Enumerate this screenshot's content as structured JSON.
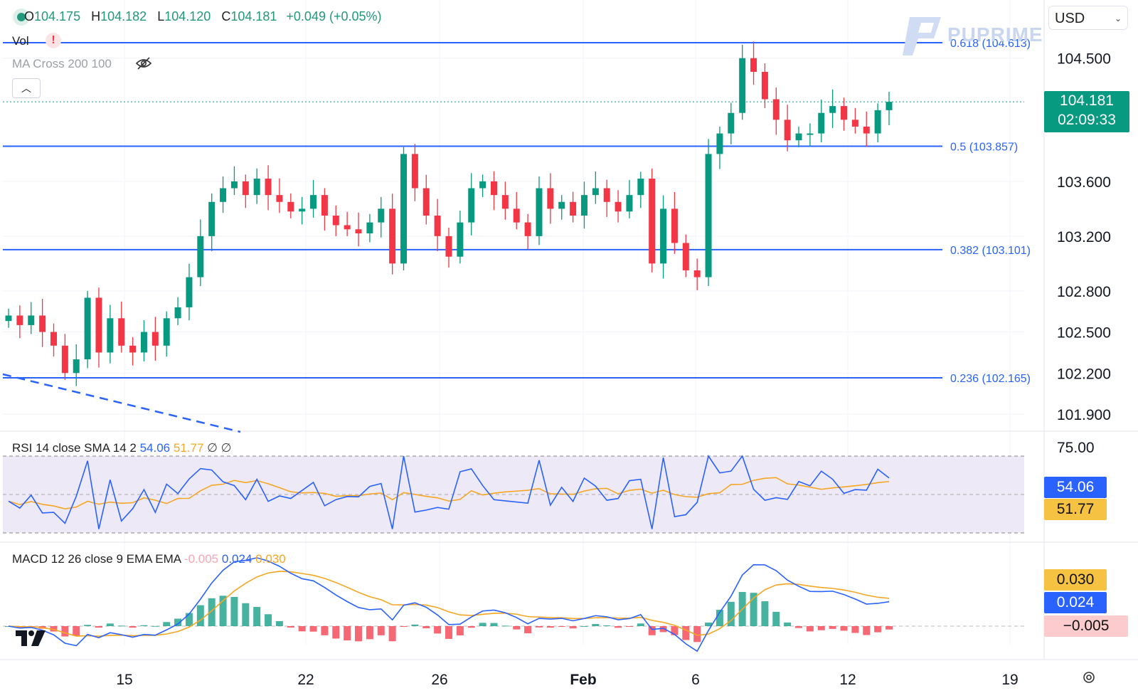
{
  "ohlc": {
    "open_label": "O",
    "open": "104.175",
    "high_label": "H",
    "high": "104.182",
    "low_label": "L",
    "low": "104.120",
    "close_label": "C",
    "close": "104.181",
    "change": "+0.049 (+0.05%)"
  },
  "indicators": {
    "vol_label": "Vol",
    "vol_warning": "!",
    "ma_cross_label": "MA Cross 200 100",
    "hidden_icon": "eye-crossed-icon"
  },
  "currency_select": {
    "value": "USD"
  },
  "brand": {
    "logo_text": "PUPRIME"
  },
  "price_axis": {
    "ticks": [
      "104.500",
      "103.600",
      "103.200",
      "102.800",
      "102.500",
      "102.200",
      "101.900"
    ],
    "tick_values": [
      104.5,
      103.6,
      103.2,
      102.8,
      102.5,
      102.2,
      101.9
    ]
  },
  "current_price": {
    "value": "104.181",
    "countdown": "02:09:33",
    "color": "#089981"
  },
  "fib_levels": [
    {
      "ratio": 0.618,
      "label": "0.618 (104.613)",
      "price": 104.613
    },
    {
      "ratio": 0.5,
      "label": "0.5 (103.857)",
      "price": 103.857
    },
    {
      "ratio": 0.382,
      "label": "0.382 (103.101)",
      "price": 103.101
    },
    {
      "ratio": 0.236,
      "label": "0.236 (102.165)",
      "price": 102.165
    }
  ],
  "rsi": {
    "label": "RSI",
    "params": "14 close SMA 14 2",
    "value": "54.06",
    "sma_value": "51.77",
    "flags": "∅ ∅",
    "axis_tick": "75.00",
    "upper_band": 70,
    "mid_band": 50,
    "lower_band": 30
  },
  "macd": {
    "label": "MACD",
    "params": "12 26 close 9 EMA EMA",
    "hist_value": "-0.005",
    "macd_value": "0.024",
    "signal_value": "0.030",
    "tag_hist": "−0.005",
    "tag_macd": "0.024",
    "tag_signal": "0.030"
  },
  "time_axis": {
    "labels": [
      "15",
      "22",
      "26",
      "Feb",
      "6",
      "12",
      "19"
    ]
  },
  "colors": {
    "up": "#089981",
    "down": "#f23645",
    "fib": "#2962ff",
    "rsi_line": "#2962ff",
    "rsi_sma": "#f5a623",
    "rsi_band_bg": "#ede9f6",
    "macd_line": "#2962ff",
    "signal_line": "#f5a623",
    "tag_rsi": "#2962ff",
    "tag_signal": "#f5c242",
    "tag_hist": "#fccbcd"
  },
  "chart_data": {
    "type": "candlestick",
    "series": [
      {
        "name": "price",
        "values": [
          102.62,
          102.55,
          102.62,
          102.5,
          102.4,
          102.2,
          102.3,
          102.75,
          102.35,
          102.6,
          102.4,
          102.35,
          102.5,
          102.4,
          102.6,
          102.68,
          102.9,
          103.2,
          103.45,
          103.55,
          103.6,
          103.5,
          103.62,
          103.5,
          103.45,
          103.38,
          103.4,
          103.5,
          103.35,
          103.28,
          103.25,
          103.22,
          103.3,
          103.4,
          103.0,
          103.8,
          103.55,
          103.35,
          103.2,
          103.05,
          103.3,
          103.55,
          103.6,
          103.5,
          103.4,
          103.3,
          103.2,
          103.55,
          103.4,
          103.45,
          103.35,
          103.5,
          103.55,
          103.45,
          103.38,
          103.5,
          103.62,
          103.0,
          103.4,
          103.15,
          102.95,
          102.9,
          103.8,
          103.95,
          104.1,
          104.5,
          104.4,
          104.2,
          104.05,
          103.9,
          103.95,
          103.95,
          104.1,
          104.15,
          104.05,
          104.0,
          103.95,
          104.12,
          104.181
        ]
      }
    ],
    "ylim": [
      101.85,
      104.65
    ]
  }
}
